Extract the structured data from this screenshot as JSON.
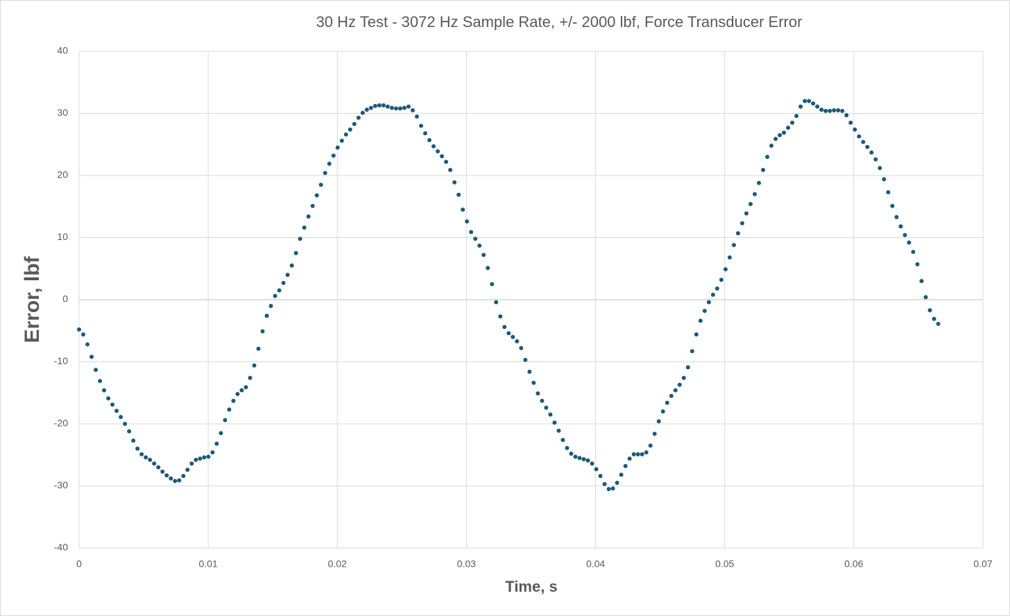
{
  "chart_data": {
    "type": "scatter",
    "title": "30 Hz Test - 3072 Hz Sample Rate, +/- 2000 lbf, Force Transducer Error",
    "x_label": "Time, s",
    "y_label": "Error, lbf",
    "color": "#1b5a78",
    "grid": true,
    "xlim": [
      0,
      0.07
    ],
    "xticks": [
      0,
      0.01,
      0.02,
      0.03,
      0.04,
      0.05,
      0.06,
      0.07
    ],
    "ylim": [
      -40,
      40
    ],
    "yticks": [
      -40,
      -30,
      -20,
      -10,
      0,
      10,
      20,
      30,
      40
    ],
    "x": [
      0,
      0.000323,
      0.000646,
      0.000969,
      0.001292,
      0.001615,
      0.001938,
      0.002261,
      0.002584,
      0.002907,
      0.00323,
      0.003553,
      0.003876,
      0.004199,
      0.004522,
      0.004845,
      0.005168,
      0.005491,
      0.005814,
      0.006137,
      0.00646,
      0.006783,
      0.007106,
      0.007429,
      0.007752,
      0.008075,
      0.008398,
      0.008721,
      0.009044,
      0.009367,
      0.00969,
      0.010013,
      0.010336,
      0.010659,
      0.010982,
      0.011305,
      0.011628,
      0.011951,
      0.012274,
      0.012597,
      0.01292,
      0.013243,
      0.013566,
      0.013889,
      0.014212,
      0.014535,
      0.014858,
      0.015181,
      0.015504,
      0.015827,
      0.01615,
      0.016473,
      0.016796,
      0.017119,
      0.017442,
      0.017765,
      0.018088,
      0.018411,
      0.018734,
      0.019057,
      0.01938,
      0.019703,
      0.020026,
      0.020349,
      0.020672,
      0.020995,
      0.021318,
      0.021641,
      0.021964,
      0.022287,
      0.02261,
      0.022933,
      0.023256,
      0.023579,
      0.023902,
      0.024225,
      0.024548,
      0.024871,
      0.025194,
      0.025517,
      0.02584,
      0.026163,
      0.026486,
      0.026809,
      0.027132,
      0.027455,
      0.027778,
      0.028101,
      0.028424,
      0.028747,
      0.02907,
      0.029393,
      0.029716,
      0.030039,
      0.030362,
      0.030685,
      0.031008,
      0.031331,
      0.031654,
      0.031977,
      0.0323,
      0.032623,
      0.032946,
      0.033269,
      0.033592,
      0.033915,
      0.034238,
      0.034561,
      0.034884,
      0.035207,
      0.03553,
      0.035853,
      0.036176,
      0.036499,
      0.036822,
      0.037145,
      0.037468,
      0.037791,
      0.038114,
      0.038437,
      0.03876,
      0.039083,
      0.039406,
      0.039729,
      0.040052,
      0.040375,
      0.040698,
      0.041021,
      0.041344,
      0.041667,
      0.04199,
      0.042313,
      0.042636,
      0.042959,
      0.043282,
      0.043605,
      0.043928,
      0.044251,
      0.044574,
      0.044897,
      0.04522,
      0.045543,
      0.045866,
      0.046189,
      0.046512,
      0.046835,
      0.047158,
      0.047481,
      0.047804,
      0.048127,
      0.04845,
      0.048773,
      0.049096,
      0.049419,
      0.049742,
      0.050065,
      0.050388,
      0.050711,
      0.051034,
      0.051357,
      0.05168,
      0.052003,
      0.052326,
      0.052649,
      0.052972,
      0.053295,
      0.053618,
      0.053941,
      0.054264,
      0.054587,
      0.05491,
      0.055233,
      0.055556,
      0.055879,
      0.056202,
      0.056525,
      0.056848,
      0.057171,
      0.057494,
      0.057817,
      0.05814,
      0.058463,
      0.058786,
      0.059109,
      0.059432,
      0.059755,
      0.060078,
      0.060401,
      0.060724,
      0.061047,
      0.06137,
      0.061693,
      0.062016,
      0.062339,
      0.062662,
      0.062985,
      0.063308,
      0.063631,
      0.063954,
      0.064277,
      0.0646,
      0.064923,
      0.065246,
      0.065569,
      0.065892,
      0.066215,
      0.066538
    ],
    "values": [
      -4.8,
      -5.6,
      -7.2,
      -9.2,
      -11.3,
      -13.1,
      -14.6,
      -15.9,
      -16.9,
      -17.9,
      -18.9,
      -20.0,
      -21.2,
      -22.7,
      -24.0,
      -24.9,
      -25.4,
      -25.8,
      -26.4,
      -27.0,
      -27.7,
      -28.3,
      -28.8,
      -29.2,
      -29.1,
      -28.4,
      -27.4,
      -26.4,
      -25.8,
      -25.6,
      -25.4,
      -25.3,
      -24.6,
      -23.2,
      -21.5,
      -19.4,
      -17.7,
      -16.3,
      -15.2,
      -14.6,
      -14.1,
      -12.6,
      -10.6,
      -7.9,
      -5.1,
      -2.6,
      -1.0,
      0.6,
      1.5,
      2.7,
      4.0,
      5.5,
      7.5,
      9.8,
      11.6,
      13.4,
      15.1,
      16.8,
      18.5,
      20.4,
      21.9,
      23.2,
      24.5,
      25.6,
      26.6,
      27.4,
      28.3,
      29.3,
      30.1,
      30.6,
      30.9,
      31.2,
      31.3,
      31.3,
      31.1,
      30.9,
      30.8,
      30.8,
      30.9,
      31.1,
      30.5,
      29.5,
      28.0,
      26.8,
      25.7,
      24.7,
      23.9,
      23.1,
      22.2,
      20.9,
      18.9,
      16.9,
      14.5,
      12.6,
      10.9,
      9.8,
      8.7,
      7.2,
      5.1,
      2.5,
      -0.4,
      -2.7,
      -4.4,
      -5.4,
      -6.0,
      -6.7,
      -7.8,
      -9.7,
      -11.6,
      -13.4,
      -15.1,
      -16.3,
      -17.4,
      -18.5,
      -19.8,
      -21.1,
      -22.6,
      -23.9,
      -24.8,
      -25.3,
      -25.5,
      -25.7,
      -25.9,
      -26.4,
      -27.3,
      -28.4,
      -29.7,
      -30.5,
      -30.4,
      -29.5,
      -28.2,
      -26.8,
      -25.6,
      -24.9,
      -24.9,
      -24.9,
      -24.6,
      -23.5,
      -21.6,
      -19.6,
      -18.0,
      -16.6,
      -15.5,
      -14.6,
      -13.7,
      -12.6,
      -10.9,
      -8.3,
      -5.6,
      -3.4,
      -1.8,
      -0.4,
      0.8,
      1.8,
      3.2,
      4.9,
      6.8,
      8.8,
      10.7,
      12.3,
      13.9,
      15.4,
      17.0,
      18.8,
      20.9,
      23.0,
      24.8,
      25.9,
      26.5,
      26.9,
      27.7,
      28.5,
      29.6,
      31.1,
      32.0,
      32.0,
      31.6,
      31.1,
      30.6,
      30.4,
      30.4,
      30.5,
      30.5,
      30.4,
      29.7,
      28.5,
      27.4,
      26.3,
      25.4,
      24.6,
      23.7,
      22.6,
      21.2,
      19.4,
      17.3,
      15.1,
      13.3,
      11.8,
      10.4,
      9.2,
      7.7,
      5.7,
      3.0,
      0.4,
      -1.7,
      -3.1,
      -3.9
    ]
  }
}
